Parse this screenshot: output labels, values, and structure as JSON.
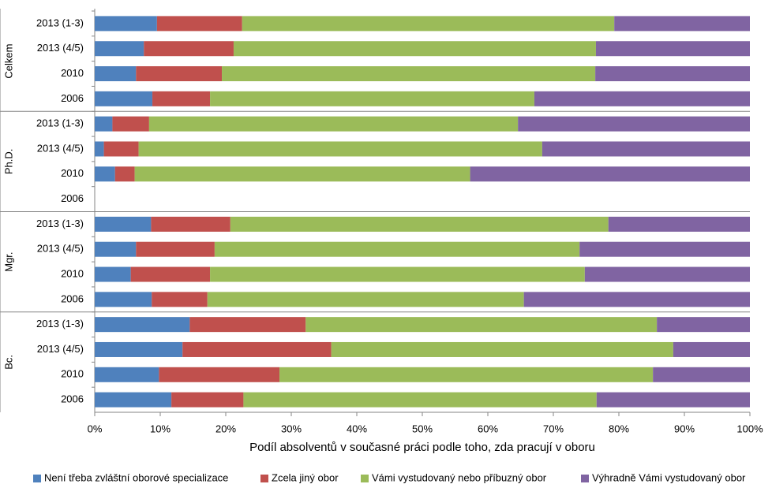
{
  "chart_data": {
    "type": "stacked-barh",
    "stacking": "percent",
    "xlabel": "Podíl absolventů v současné práci podle toho, zda pracují v oboru",
    "groups": [
      {
        "name": "Celkem",
        "categories": [
          "2013 (1-3)",
          "2013 (4/5)",
          "2010",
          "2006"
        ]
      },
      {
        "name": "Ph.D.",
        "categories": [
          "2013 (1-3)",
          "2013 (4/5)",
          "2010",
          "2006"
        ]
      },
      {
        "name": "Mgr.",
        "categories": [
          "2013 (1-3)",
          "2013 (4/5)",
          "2010",
          "2006"
        ]
      },
      {
        "name": "Bc.",
        "categories": [
          "2013 (1-3)",
          "2013 (4/5)",
          "2010",
          "2006"
        ]
      }
    ],
    "series": [
      {
        "name": "Není třeba zvláštní oborové specializace",
        "color": "#4f81bd",
        "values": [
          9.5,
          7.5,
          6.3,
          8.8,
          2.7,
          1.4,
          3.1,
          null,
          8.6,
          6.3,
          5.5,
          8.7,
          14.5,
          13.4,
          9.8,
          11.7
        ]
      },
      {
        "name": "Zcela jiný obor",
        "color": "#c0504d",
        "values": [
          13.0,
          13.7,
          13.1,
          8.8,
          5.6,
          5.3,
          3.0,
          null,
          12.1,
          12.0,
          12.1,
          8.5,
          17.7,
          22.7,
          18.4,
          11.0
        ]
      },
      {
        "name": "Vámi vystudovaný nebo příbuzný obor",
        "color": "#9bbb59",
        "values": [
          56.8,
          55.3,
          57.0,
          49.5,
          56.3,
          61.6,
          51.2,
          null,
          57.7,
          55.7,
          57.2,
          48.3,
          53.6,
          52.2,
          57.0,
          53.9
        ]
      },
      {
        "name": "Výhradně Vámi vystudovaný obor",
        "color": "#8064a2",
        "values": [
          20.7,
          23.5,
          23.6,
          32.9,
          35.4,
          31.7,
          42.7,
          null,
          21.6,
          26.0,
          25.2,
          34.5,
          14.2,
          11.7,
          14.8,
          23.4
        ]
      }
    ],
    "xlim": [
      0,
      100
    ],
    "xticks": [
      {
        "value": 0,
        "label": "0%"
      },
      {
        "value": 10,
        "label": "10%"
      },
      {
        "value": 20,
        "label": "20%"
      },
      {
        "value": 30,
        "label": "30%"
      },
      {
        "value": 40,
        "label": "40%"
      },
      {
        "value": 50,
        "label": "50%"
      },
      {
        "value": 60,
        "label": "60%"
      },
      {
        "value": 70,
        "label": "70%"
      },
      {
        "value": 80,
        "label": "80%"
      },
      {
        "value": 90,
        "label": "90%"
      },
      {
        "value": 100,
        "label": "100%"
      }
    ],
    "legend": "bottom"
  }
}
